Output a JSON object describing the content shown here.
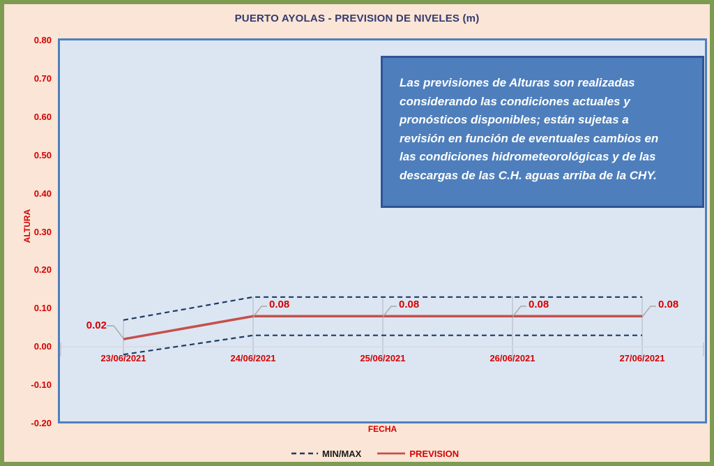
{
  "title": "PUERTO AYOLAS - PREVISION DE NIVELES (m)",
  "annotation": {
    "lines": [
      "Las previsiones de Alturas son realizadas",
      "considerando las condiciones actuales y",
      "pronósticos disponibles;  están sujetas a",
      "revisión en función de eventuales cambios en",
      "las condiciones hidrometeorológicas y de las",
      "descargas de las C.H. aguas arriba de la CHY."
    ]
  },
  "chart_data": {
    "type": "line",
    "title": "PUERTO AYOLAS - PREVISION DE NIVELES (m)",
    "xlabel": "FECHA",
    "ylabel": "ALTURA",
    "ylim": [
      -0.2,
      0.8
    ],
    "ytick_step": 0.1,
    "yticks": [
      "0.80",
      "0.70",
      "0.60",
      "0.50",
      "0.40",
      "0.30",
      "0.20",
      "0.10",
      "0.00",
      "-0.10",
      "-0.20"
    ],
    "categories": [
      "23/06/2021",
      "24/06/2021",
      "25/06/2021",
      "26/06/2021",
      "27/06/2021"
    ],
    "series": [
      {
        "name": "PREVISION",
        "role": "prevision",
        "style": "solid",
        "color": "#C5504B",
        "values": [
          0.02,
          0.08,
          0.08,
          0.08,
          0.08
        ],
        "data_labels": [
          "0.02",
          "0.08",
          "0.08",
          "0.08",
          "0.08"
        ]
      },
      {
        "name": "MIN/MAX",
        "role": "max",
        "style": "dashed",
        "color": "#1F3A68",
        "values": [
          0.07,
          0.13,
          0.13,
          0.13,
          0.13
        ]
      },
      {
        "name": "MIN/MAX",
        "role": "min",
        "style": "dashed",
        "color": "#1F3A68",
        "values": [
          -0.02,
          0.03,
          0.03,
          0.03,
          0.03
        ]
      }
    ],
    "legend": [
      {
        "label": "MIN/MAX",
        "style": "dashed"
      },
      {
        "label": "PREVISION",
        "style": "solid"
      }
    ],
    "legend_position": "bottom",
    "grid": false
  },
  "colors": {
    "page_bg": "#FBE5D6",
    "frame_green": "#7D9C51",
    "plot_bg": "#DCE6F2",
    "plot_border": "#4F81BD",
    "note_bg": "#4E7FBC",
    "note_border": "#2F5597",
    "note_text": "#FFFFFF",
    "title_text": "#333A6E",
    "red_text": "#D40000",
    "prevision_line": "#C5504B",
    "minmax_line": "#1F3A68",
    "legend_minmax_text": "#1A1A1A",
    "leader_gray": "#A6A6A6",
    "tick_gray": "#AFB6C2",
    "axis_line": "#D4DAE4"
  }
}
